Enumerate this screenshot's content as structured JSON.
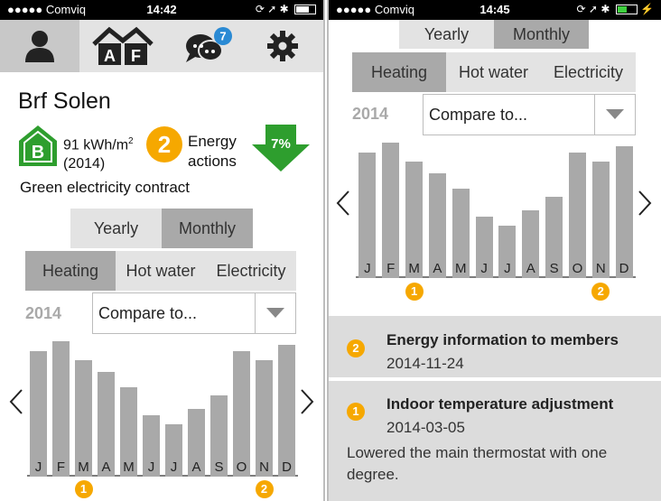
{
  "status_left": {
    "carrier": "●●●●● Comviq",
    "time": "14:42"
  },
  "status_right": {
    "carrier": "●●●●● Comviq",
    "time": "14:45"
  },
  "left": {
    "nav": {
      "af_letters": [
        "A",
        "F"
      ],
      "chat_badge": "7"
    },
    "building_name": "Brf Solen",
    "energy_class": "B",
    "kwh": "91 kWh/m",
    "kwh_sup": "2",
    "year_paren": "(2014)",
    "actions_count": "2",
    "actions_label_1": "Energy",
    "actions_label_2": "actions",
    "reduction": "7%",
    "contract": "Green electricity contract"
  },
  "period_tabs": [
    "Yearly",
    "Monthly"
  ],
  "period_selected": 1,
  "type_tabs": [
    "Heating",
    "Hot water",
    "Electricity"
  ],
  "type_selected": 0,
  "year": "2014",
  "compare_placeholder": "Compare to...",
  "chart_data": {
    "type": "bar",
    "categories": [
      "J",
      "F",
      "M",
      "A",
      "M",
      "J",
      "J",
      "A",
      "S",
      "O",
      "N",
      "D"
    ],
    "values": [
      82,
      88,
      76,
      68,
      58,
      40,
      34,
      44,
      53,
      82,
      76,
      86
    ],
    "markers": [
      {
        "category_index": 2,
        "label": "1"
      },
      {
        "category_index": 10,
        "label": "2"
      }
    ]
  },
  "feed": [
    {
      "badge": "2",
      "title": "Energy information to members",
      "date": "2014-11-24"
    },
    {
      "badge": "1",
      "title": "Indoor temperature adjustment",
      "date": "2014-03-05",
      "description": "Lowered the main thermostat with one degree."
    }
  ],
  "colors": {
    "accent": "#f6a800",
    "green": "#2e9e2e",
    "bar": "#a9a9a9",
    "badge": "#2a8ad4"
  }
}
